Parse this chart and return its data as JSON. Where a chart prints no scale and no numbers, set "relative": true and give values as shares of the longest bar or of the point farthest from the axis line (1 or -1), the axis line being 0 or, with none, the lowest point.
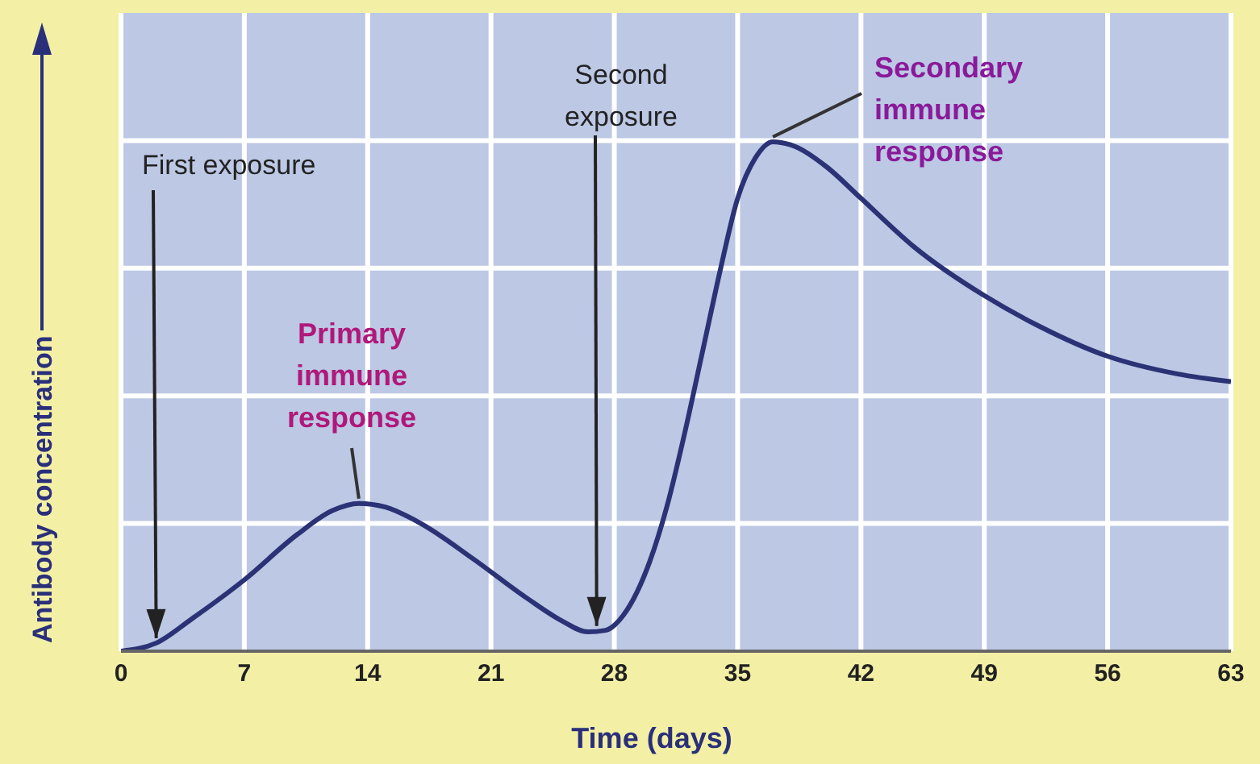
{
  "chart_data": {
    "type": "line",
    "xlabel": "Time (days)",
    "ylabel": "Antibody concentration",
    "relative": true,
    "grid": true,
    "marker": "none",
    "line_style": "solid",
    "xlim": [
      0,
      63
    ],
    "xticks": [
      0,
      7,
      14,
      21,
      28,
      35,
      42,
      49,
      56,
      63
    ],
    "x": [
      0,
      2,
      4,
      7,
      10,
      12,
      13.5,
      15,
      17,
      20,
      23,
      25,
      26.5,
      27.5,
      28.5,
      30,
      31,
      32,
      33,
      34,
      35,
      36,
      37,
      38,
      40,
      42,
      45,
      49,
      52,
      56,
      60,
      63
    ],
    "series": [
      {
        "color": "#2b3275",
        "values": [
          0,
          0.016,
          0.063,
          0.14,
          0.229,
          0.276,
          0.29,
          0.283,
          0.251,
          0.181,
          0.105,
          0.06,
          0.038,
          0.041,
          0.07,
          0.175,
          0.286,
          0.429,
          0.587,
          0.746,
          0.889,
          0.968,
          1,
          0.994,
          0.952,
          0.889,
          0.794,
          0.698,
          0.64,
          0.579,
          0.544,
          0.529
        ]
      }
    ],
    "annotations": [
      {
        "text": "First exposure",
        "x": 2,
        "y": 0.016
      },
      {
        "text": "Second exposure",
        "x": 27,
        "y": 0.04
      },
      {
        "text": "Primary immune response",
        "x": 13.5,
        "y": 0.29
      },
      {
        "text": "Secondary immune response",
        "x": 37,
        "y": 1
      }
    ]
  }
}
